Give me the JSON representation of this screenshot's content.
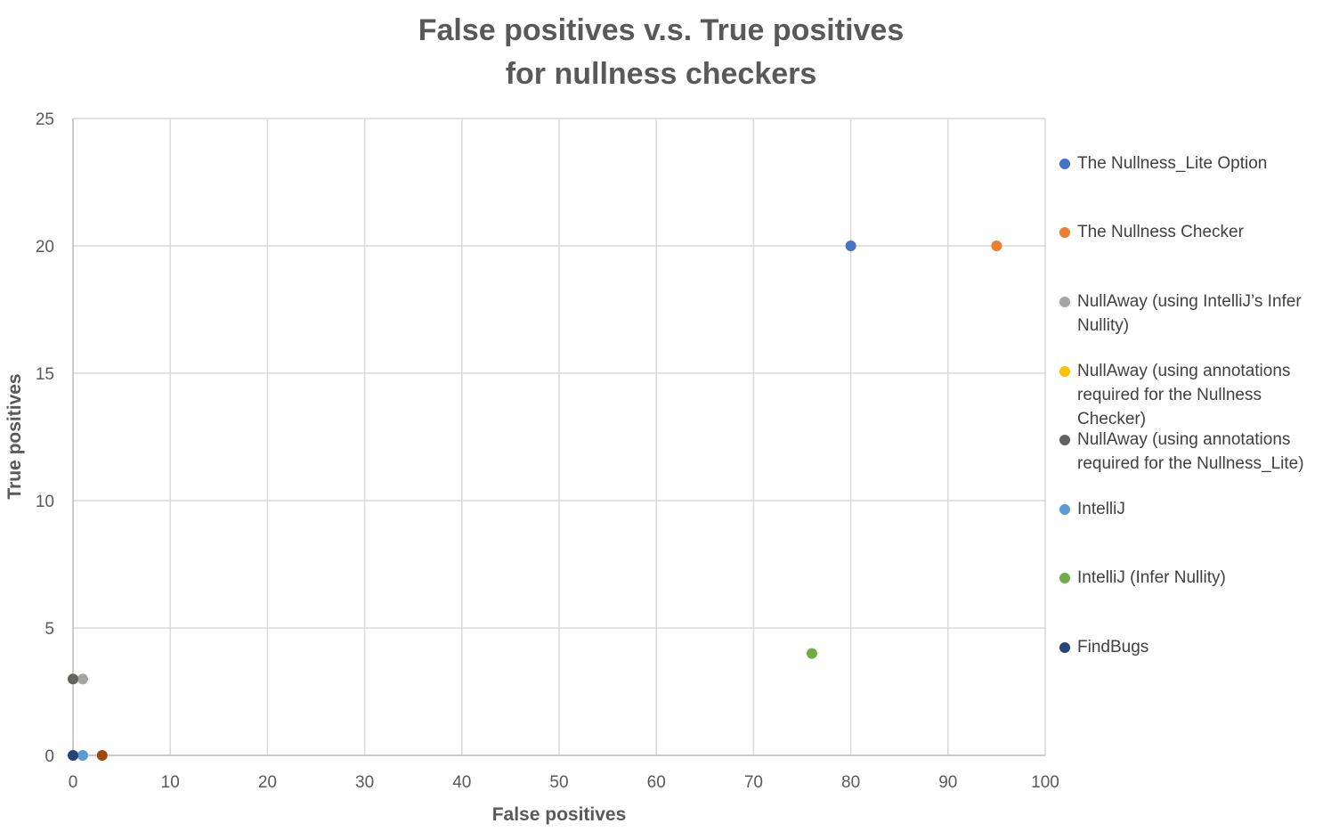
{
  "chart_data": {
    "type": "scatter",
    "title": "False positives v.s. True positives",
    "subtitle": "for nullness checkers",
    "xlabel": "False positives",
    "ylabel": "True positives",
    "xlim": [
      0,
      100
    ],
    "ylim": [
      0,
      25
    ],
    "x_ticks": [
      0,
      10,
      20,
      30,
      40,
      50,
      60,
      70,
      80,
      90,
      100
    ],
    "y_ticks": [
      0,
      5,
      10,
      15,
      20,
      25
    ],
    "grid": true,
    "legend_position": "right",
    "series": [
      {
        "name": "The Nullness_Lite Option",
        "color": "#4472c4",
        "points": [
          [
            80,
            20
          ]
        ]
      },
      {
        "name": "The Nullness Checker",
        "color": "#ed7d31",
        "points": [
          [
            95,
            20
          ]
        ]
      },
      {
        "name": "NullAway (using IntelliJ’s Infer Nullity)",
        "color": "#a5a5a5",
        "points": [
          [
            1,
            3
          ]
        ]
      },
      {
        "name": "NullAway (using annotations required for the Nullness Checker)",
        "color": "#ffc000",
        "points": [
          [
            0,
            3
          ]
        ]
      },
      {
        "name": "NullAway (using annotations required for the Nullness_Lite)",
        "color": "#636363",
        "points": [
          [
            0,
            3
          ]
        ]
      },
      {
        "name": "IntelliJ",
        "color": "#5b9bd5",
        "points": [
          [
            1,
            0
          ]
        ]
      },
      {
        "name": "IntelliJ (Infer Nullity)",
        "color": "#70ad47",
        "points": [
          [
            76,
            4
          ]
        ]
      },
      {
        "name": "FindBugs",
        "color": "#264478",
        "points": [
          [
            0,
            0
          ]
        ]
      },
      {
        "name": "",
        "color": "#9e480e",
        "points": [
          [
            3,
            0
          ]
        ]
      }
    ]
  }
}
